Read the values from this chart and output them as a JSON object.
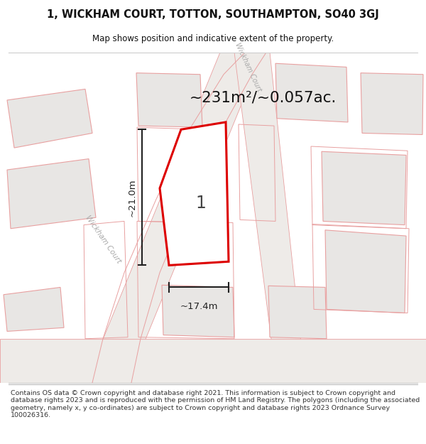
{
  "title": "1, WICKHAM COURT, TOTTON, SOUTHAMPTON, SO40 3GJ",
  "subtitle": "Map shows position and indicative extent of the property.",
  "area_text": "~231m²/~0.057ac.",
  "dim_width": "~17.4m",
  "dim_height": "~21.0m",
  "plot_label": "1",
  "footer": "Contains OS data © Crown copyright and database right 2021. This information is subject to Crown copyright and database rights 2023 and is reproduced with the permission of HM Land Registry. The polygons (including the associated geometry, namely x, y co-ordinates) are subject to Crown copyright and database rights 2023 Ordnance Survey 100026316.",
  "bg_color": "#ffffff",
  "map_bg": "#f7f6f4",
  "plot_fill": "#ffffff",
  "plot_edge_color": "#dd0000",
  "building_fill": "#e8e6e4",
  "building_edge": "#e8a0a0",
  "road_edge": "#e8a0a0",
  "road_fill": "#f0eeec",
  "dim_color": "#222222",
  "street_label_color": "#aaaaaa",
  "title_color": "#111111"
}
